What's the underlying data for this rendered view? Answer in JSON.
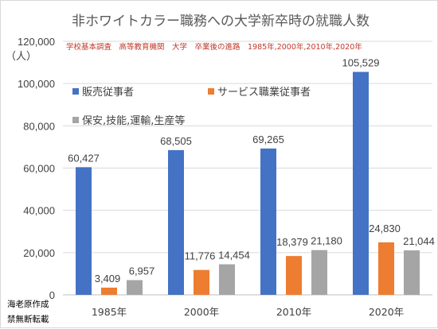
{
  "chart_data": {
    "type": "bar",
    "title": "非ホワイトカラー職務への大学新卒時の就職人数",
    "subtitle": "学校基本調査　高等教育機関　大学　卒業後の進路　1985年,2000年,2010年,2020年",
    "ylabel": "（人）",
    "ylim": [
      0,
      120000
    ],
    "yticks": [
      0,
      20000,
      40000,
      60000,
      80000,
      100000,
      120000
    ],
    "ytick_labels": [
      "0",
      "20,000",
      "40,000",
      "60,000",
      "80,000",
      "100,000",
      "120,000"
    ],
    "grid": true,
    "legend_placement": "top-left",
    "categories": [
      "1985年",
      "2000年",
      "2010年",
      "2020年"
    ],
    "series": [
      {
        "name": "販売従事者",
        "color": "#4472c4",
        "values": [
          60427,
          68505,
          69265,
          105529
        ],
        "labels": [
          "60,427",
          "68,505",
          "69,265",
          "105,529"
        ]
      },
      {
        "name": "サービス職業従事者",
        "color": "#ed7d31",
        "values": [
          3409,
          11776,
          18379,
          24830
        ],
        "labels": [
          "3,409",
          "11,776",
          "18,379",
          "24,830"
        ]
      },
      {
        "name": "保安,技能,運輸,生産等",
        "color": "#a5a5a5",
        "values": [
          6957,
          14454,
          21180,
          21044
        ],
        "labels": [
          "6,957",
          "14,454",
          "21,180",
          "21,044"
        ]
      }
    ]
  },
  "notes": {
    "author": "海老原作成",
    "copyright": "禁無断転載"
  }
}
